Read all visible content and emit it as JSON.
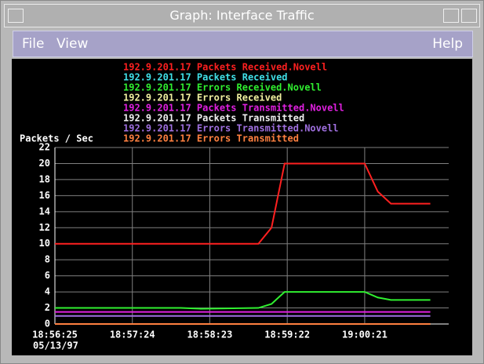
{
  "window": {
    "title": "Graph: Interface Traffic",
    "menu": {
      "file": "File",
      "view": "View",
      "help": "Help"
    }
  },
  "chart_data": {
    "type": "line",
    "ylabel": "Packets / Sec",
    "xdate": "05/13/97",
    "x": [
      "18:56:25",
      "18:58:01",
      "18:58:16",
      "18:59:00",
      "18:59:10",
      "18:59:20",
      "19:00:21",
      "19:00:31",
      "19:00:41",
      "19:01:11"
    ],
    "xlim": [
      "18:56:25",
      "19:01:25"
    ],
    "xticks": [
      "18:56:25",
      "18:57:24",
      "18:58:23",
      "18:59:22",
      "19:00:21"
    ],
    "ylim": [
      0,
      22
    ],
    "yticks": [
      0,
      2,
      4,
      6,
      8,
      10,
      12,
      14,
      16,
      18,
      20,
      22
    ],
    "grid": true,
    "series": [
      {
        "name": "192.9.201.17 Packets Received.Novell",
        "color": "#ff2020",
        "values": [
          10,
          10,
          10,
          10,
          12,
          20,
          20,
          16.5,
          15,
          15
        ]
      },
      {
        "name": "192.9.201.17 Packets Received",
        "color": "#40e0e8",
        "values": [
          0,
          0,
          0,
          0,
          0,
          0,
          0,
          0,
          0,
          0
        ]
      },
      {
        "name": "192.9.201.17 Errors Received.Novell",
        "color": "#30f030",
        "values": [
          2,
          2,
          1.9,
          2,
          2.5,
          4,
          4,
          3.3,
          3,
          3
        ]
      },
      {
        "name": "192.9.201.17 Errors Received",
        "color": "#f0f0a0",
        "values": [
          0,
          0,
          0,
          0,
          0,
          0,
          0,
          0,
          0,
          0
        ]
      },
      {
        "name": "192.9.201.17 Packets Transmitted.Novell",
        "color": "#e020e0",
        "values": [
          1.5,
          1.5,
          1.5,
          1.5,
          1.5,
          1.5,
          1.5,
          1.5,
          1.5,
          1.5
        ]
      },
      {
        "name": "192.9.201.17 Packets Transmitted",
        "color": "#f0f0f0",
        "values": [
          0,
          0,
          0,
          0,
          0,
          0,
          0,
          0,
          0,
          0
        ]
      },
      {
        "name": "192.9.201.17 Errors Transmitted.Novell",
        "color": "#a070e0",
        "values": [
          1,
          1,
          1,
          1,
          1,
          1,
          1,
          1,
          1,
          1
        ]
      },
      {
        "name": "192.9.201.17 Errors Transmitted",
        "color": "#ff8040",
        "values": [
          0,
          0,
          0,
          0,
          0,
          0,
          0,
          0,
          0,
          0
        ]
      }
    ]
  }
}
